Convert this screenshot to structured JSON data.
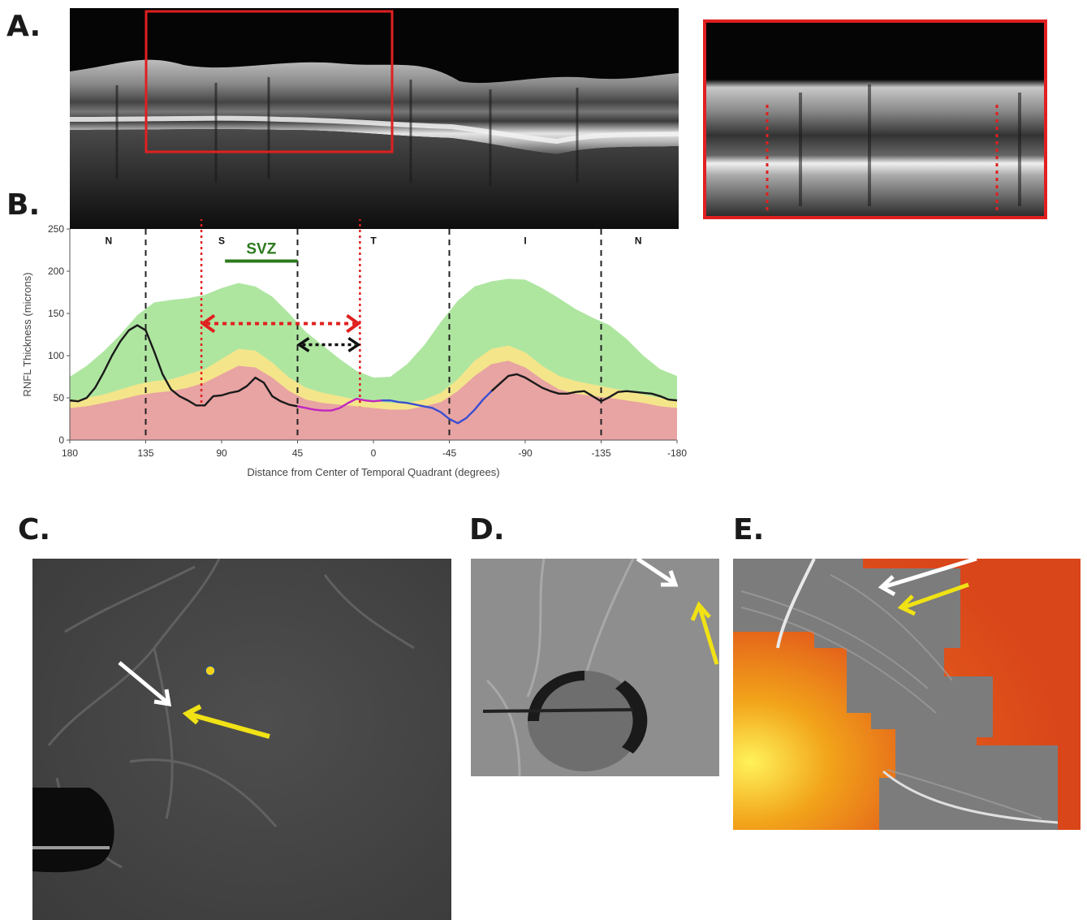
{
  "panels": {
    "a": "A.",
    "b": "B.",
    "c": "C.",
    "d": "D.",
    "e": "E."
  },
  "chart_data": {
    "type": "line",
    "xlabel": "Distance from Center of Temporal Quadrant (degrees)",
    "ylabel": "RNFL Thickness (microns)",
    "xlim": [
      180,
      -180
    ],
    "ylim": [
      0,
      250
    ],
    "x_ticks": [
      180,
      135,
      90,
      45,
      0,
      -45,
      -90,
      -135,
      -180
    ],
    "x_tick_labels": [
      "180",
      "135",
      "90",
      "45",
      "0",
      "-45",
      "-90",
      "-135",
      "-180"
    ],
    "y_ticks": [
      0,
      50,
      100,
      150,
      200,
      250
    ],
    "quadrants": [
      {
        "label": "N",
        "x": 157
      },
      {
        "label": "S",
        "x": 90
      },
      {
        "label": "T",
        "x": 0
      },
      {
        "label": "I",
        "x": -90
      },
      {
        "label": "N",
        "x": -157
      }
    ],
    "quadrant_boundaries": [
      135,
      45,
      -45,
      -135
    ],
    "svz": {
      "label": "SVZ",
      "x_start": 88,
      "x_end": 45,
      "y": 212
    },
    "red_arrow": {
      "x_start": 102,
      "x_end": 8,
      "y": 138
    },
    "black_arrow": {
      "x_start": 45,
      "x_end": 8,
      "y": 113
    },
    "red_lines_x": [
      102,
      8
    ],
    "series": [
      {
        "band": "normal-green",
        "color": "#aee6a0",
        "x": [
          180,
          170,
          160,
          150,
          140,
          130,
          120,
          110,
          100,
          90,
          80,
          70,
          60,
          50,
          40,
          30,
          20,
          10,
          0,
          -10,
          -20,
          -30,
          -40,
          -50,
          -60,
          -70,
          -80,
          -90,
          -100,
          -110,
          -120,
          -130,
          -140,
          -150,
          -160,
          -170,
          -180
        ],
        "values": [
          75,
          88,
          105,
          125,
          148,
          163,
          166,
          168,
          172,
          180,
          186,
          182,
          170,
          150,
          128,
          112,
          96,
          82,
          74,
          75,
          90,
          112,
          140,
          165,
          182,
          188,
          191,
          190,
          180,
          168,
          155,
          145,
          136,
          120,
          100,
          84,
          76
        ]
      },
      {
        "band": "borderline-yellow",
        "color": "#f4e58a",
        "x": [
          180,
          170,
          160,
          150,
          140,
          130,
          120,
          110,
          100,
          90,
          80,
          70,
          60,
          50,
          40,
          30,
          20,
          10,
          0,
          -10,
          -20,
          -30,
          -40,
          -50,
          -60,
          -70,
          -80,
          -90,
          -100,
          -110,
          -120,
          -130,
          -140,
          -150,
          -160,
          -170,
          -180
        ],
        "values": [
          46,
          50,
          54,
          60,
          66,
          70,
          72,
          78,
          84,
          96,
          108,
          106,
          92,
          74,
          62,
          56,
          52,
          48,
          46,
          44,
          44,
          48,
          56,
          72,
          94,
          108,
          112,
          104,
          88,
          76,
          70,
          66,
          62,
          58,
          54,
          50,
          46
        ]
      },
      {
        "band": "abnormal-red",
        "color": "#e8a3a3",
        "x": [
          180,
          170,
          160,
          150,
          140,
          130,
          120,
          110,
          100,
          90,
          80,
          70,
          60,
          50,
          40,
          30,
          20,
          10,
          0,
          -10,
          -20,
          -30,
          -40,
          -50,
          -60,
          -70,
          -80,
          -90,
          -100,
          -110,
          -120,
          -130,
          -140,
          -150,
          -160,
          -170,
          -180
        ],
        "values": [
          38,
          40,
          44,
          48,
          53,
          56,
          58,
          62,
          68,
          78,
          88,
          86,
          74,
          58,
          48,
          44,
          42,
          40,
          38,
          36,
          36,
          40,
          45,
          58,
          76,
          90,
          94,
          86,
          72,
          60,
          55,
          52,
          50,
          47,
          44,
          40,
          38
        ]
      },
      {
        "name": "",
        "color": "#1a1a1a",
        "x": [
          180,
          175,
          170,
          165,
          160,
          155,
          150,
          145,
          140,
          135,
          130,
          125,
          120,
          115,
          110,
          105,
          100,
          95,
          90,
          85,
          80,
          75,
          70,
          65,
          60,
          55,
          50,
          45
        ],
        "values": [
          47,
          46,
          50,
          62,
          80,
          100,
          117,
          130,
          136,
          130,
          105,
          78,
          60,
          52,
          47,
          41,
          41,
          52,
          53,
          56,
          58,
          64,
          74,
          68,
          52,
          46,
          42,
          40
        ]
      },
      {
        "name": "",
        "color": "#c026c0",
        "x": [
          45,
          40,
          35,
          30,
          25,
          20,
          15,
          10,
          5,
          0,
          -5
        ],
        "values": [
          40,
          38,
          36,
          35,
          35,
          38,
          44,
          49,
          47,
          46,
          47
        ]
      },
      {
        "name": "",
        "color": "#3a4fd0",
        "x": [
          -5,
          -10,
          -15,
          -20,
          -25,
          -30,
          -35,
          -40,
          -45,
          -50,
          -55,
          -60,
          -65,
          -70
        ],
        "values": [
          47,
          47,
          45,
          44,
          42,
          40,
          38,
          33,
          25,
          20,
          26,
          36,
          48,
          58
        ]
      },
      {
        "name": "",
        "color": "#1a1a1a",
        "x": [
          -70,
          -75,
          -80,
          -85,
          -90,
          -95,
          -100,
          -105,
          -110,
          -115,
          -120,
          -125,
          -130,
          -135,
          -140,
          -145,
          -150,
          -155,
          -160,
          -165,
          -170,
          -175,
          -180
        ],
        "values": [
          58,
          67,
          76,
          78,
          74,
          68,
          62,
          58,
          55,
          55,
          57,
          58,
          52,
          46,
          51,
          57,
          58,
          57,
          56,
          55,
          52,
          48,
          47
        ]
      }
    ]
  }
}
